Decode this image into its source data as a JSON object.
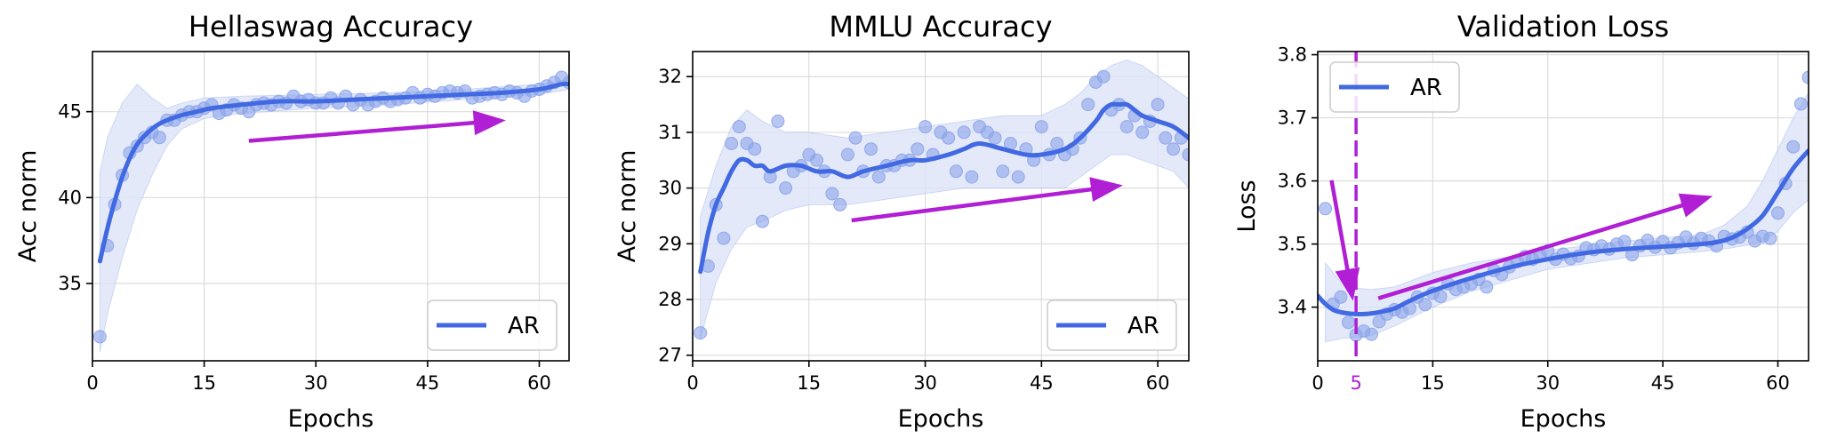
{
  "colors": {
    "line": "#4169e1",
    "marker": "#8aa4ea",
    "band": "#dde4f7",
    "arrow": "#b01fd4",
    "grid": "#dcdcdc"
  },
  "chart_data": [
    {
      "type": "line",
      "title": "Hellaswag Accuracy",
      "xlabel": "Epochs",
      "ylabel": "Acc norm",
      "xlim": [
        0,
        64
      ],
      "ylim": [
        30.5,
        48.5
      ],
      "xticks": [
        0,
        15,
        30,
        45,
        60
      ],
      "yticks": [
        35,
        40,
        45
      ],
      "grid": true,
      "legend_position": "lower-right",
      "series": [
        {
          "name": "AR"
        }
      ],
      "points": {
        "x": [
          1,
          2,
          3,
          4,
          5,
          6,
          7,
          8,
          9,
          10,
          11,
          12,
          13,
          14,
          15,
          16,
          17,
          18,
          19,
          20,
          21,
          22,
          23,
          24,
          25,
          26,
          27,
          28,
          29,
          30,
          31,
          32,
          33,
          34,
          35,
          36,
          37,
          38,
          39,
          40,
          41,
          42,
          43,
          44,
          45,
          46,
          47,
          48,
          49,
          50,
          51,
          52,
          53,
          54,
          55,
          56,
          57,
          58,
          59,
          60,
          61,
          62,
          63,
          64
        ],
        "y": [
          31.9,
          37.2,
          39.6,
          41.3,
          42.6,
          43.0,
          43.5,
          43.8,
          43.5,
          44.5,
          44.5,
          44.8,
          45.0,
          45.0,
          45.2,
          45.4,
          44.9,
          45.1,
          45.4,
          45.2,
          45.0,
          45.4,
          45.5,
          45.4,
          45.6,
          45.5,
          45.9,
          45.6,
          45.7,
          45.5,
          45.5,
          45.8,
          45.5,
          45.9,
          45.4,
          45.7,
          45.4,
          45.6,
          45.8,
          45.6,
          45.7,
          45.8,
          46.1,
          45.8,
          46.0,
          45.9,
          46.1,
          46.2,
          46.1,
          46.2,
          45.8,
          45.9,
          46.0,
          46.1,
          46.0,
          46.2,
          46.1,
          45.9,
          46.2,
          46.3,
          46.5,
          46.7,
          47.0,
          46.7
        ]
      },
      "trend": {
        "x": [
          1,
          2,
          3,
          4,
          5,
          6,
          7,
          8,
          9,
          10,
          12,
          14,
          16,
          20,
          25,
          30,
          35,
          40,
          45,
          50,
          55,
          60,
          63,
          64
        ],
        "y": [
          36.3,
          38.2,
          39.8,
          41.2,
          42.3,
          43.1,
          43.6,
          44.0,
          44.3,
          44.5,
          44.8,
          45.0,
          45.2,
          45.4,
          45.6,
          45.6,
          45.7,
          45.8,
          45.9,
          46.0,
          46.1,
          46.3,
          46.6,
          46.6
        ]
      },
      "band": {
        "x": [
          1,
          2,
          4,
          6,
          8,
          10,
          12,
          15,
          20,
          30,
          40,
          50,
          60,
          64
        ],
        "low": [
          31.0,
          33.2,
          36.5,
          39.3,
          41.3,
          43.0,
          44.0,
          44.6,
          44.9,
          45.2,
          45.4,
          45.7,
          46.0,
          46.3
        ],
        "high": [
          41.5,
          43.5,
          45.5,
          46.6,
          45.8,
          45.2,
          45.5,
          45.8,
          45.9,
          46.0,
          46.1,
          46.3,
          46.6,
          46.9
        ]
      },
      "arrows": [
        {
          "from": [
            21,
            43.3
          ],
          "to": [
            55.5,
            44.5
          ]
        }
      ]
    },
    {
      "type": "line",
      "title": "MMLU Accuracy",
      "xlabel": "Epochs",
      "ylabel": "Acc norm",
      "xlim": [
        0,
        64
      ],
      "ylim": [
        26.9,
        32.45
      ],
      "xticks": [
        0,
        15,
        30,
        45,
        60
      ],
      "yticks": [
        27,
        28,
        29,
        30,
        31,
        32
      ],
      "grid": true,
      "legend_position": "lower-right",
      "series": [
        {
          "name": "AR"
        }
      ],
      "points": {
        "x": [
          1,
          2,
          3,
          4,
          5,
          6,
          7,
          8,
          9,
          10,
          11,
          12,
          13,
          14,
          15,
          16,
          17,
          18,
          19,
          20,
          21,
          22,
          23,
          24,
          25,
          26,
          27,
          28,
          29,
          30,
          31,
          32,
          33,
          34,
          35,
          36,
          37,
          38,
          39,
          40,
          41,
          42,
          43,
          44,
          45,
          46,
          47,
          48,
          49,
          50,
          51,
          52,
          53,
          54,
          55,
          56,
          57,
          58,
          59,
          60,
          61,
          62,
          63,
          64
        ],
        "y": [
          27.4,
          28.6,
          29.7,
          29.1,
          30.8,
          31.1,
          30.8,
          30.7,
          29.4,
          30.2,
          31.2,
          30.0,
          30.3,
          30.4,
          30.6,
          30.5,
          30.3,
          29.9,
          29.7,
          30.6,
          30.9,
          30.3,
          30.7,
          30.2,
          30.4,
          30.4,
          30.5,
          30.5,
          30.7,
          31.1,
          30.6,
          31.0,
          30.9,
          30.3,
          31.0,
          30.2,
          31.1,
          31.0,
          30.9,
          30.3,
          30.8,
          30.2,
          30.7,
          30.5,
          31.1,
          30.6,
          30.8,
          30.6,
          30.7,
          30.9,
          31.5,
          31.9,
          32.0,
          31.4,
          31.5,
          31.1,
          31.3,
          31.0,
          31.2,
          31.5,
          30.9,
          30.7,
          30.9,
          30.6
        ]
      },
      "trend": {
        "x": [
          1,
          2,
          3,
          4,
          5,
          6,
          7,
          8,
          9,
          10,
          12,
          14,
          16,
          18,
          20,
          22,
          25,
          28,
          30,
          33,
          35,
          37,
          40,
          43,
          45,
          48,
          50,
          52,
          53,
          54,
          55,
          56,
          57,
          58,
          60,
          62,
          64
        ],
        "y": [
          28.5,
          29.2,
          29.7,
          30.0,
          30.3,
          30.5,
          30.5,
          30.4,
          30.4,
          30.3,
          30.4,
          30.4,
          30.3,
          30.3,
          30.2,
          30.3,
          30.4,
          30.5,
          30.5,
          30.6,
          30.7,
          30.8,
          30.7,
          30.6,
          30.6,
          30.7,
          30.9,
          31.2,
          31.4,
          31.5,
          31.5,
          31.5,
          31.4,
          31.3,
          31.2,
          31.1,
          30.9
        ]
      },
      "band": {
        "x": [
          1,
          3,
          5,
          7,
          9,
          12,
          15,
          20,
          25,
          30,
          35,
          40,
          45,
          48,
          50,
          52,
          54,
          56,
          58,
          60,
          62,
          64
        ],
        "low": [
          27.3,
          28.3,
          28.9,
          29.3,
          29.4,
          29.6,
          29.7,
          29.7,
          29.8,
          29.9,
          30.0,
          30.0,
          30.0,
          30.0,
          30.2,
          30.4,
          30.6,
          30.6,
          30.5,
          30.4,
          30.3,
          30.0
        ],
        "high": [
          29.5,
          30.4,
          31.1,
          31.4,
          31.2,
          31.0,
          31.0,
          30.9,
          31.0,
          31.1,
          31.2,
          31.3,
          31.3,
          31.5,
          31.7,
          32.0,
          32.2,
          32.3,
          32.2,
          32.0,
          31.8,
          31.6
        ]
      },
      "arrows": [
        {
          "from": [
            20.5,
            29.42
          ],
          "to": [
            55.5,
            30.05
          ]
        }
      ]
    },
    {
      "type": "line",
      "title": "Validation Loss",
      "xlabel": "Epochs",
      "ylabel": "Loss",
      "xlim": [
        0,
        64
      ],
      "ylim": [
        3.315,
        3.805
      ],
      "xticks": [
        0,
        15,
        30,
        45,
        60
      ],
      "yticks": [
        3.4,
        3.5,
        3.6,
        3.7,
        3.8
      ],
      "grid": true,
      "legend_position": "upper-left",
      "series": [
        {
          "name": "AR"
        }
      ],
      "vline": {
        "x": 5,
        "label": "5"
      },
      "points": {
        "x": [
          1,
          2,
          3,
          4,
          5,
          6,
          7,
          8,
          9,
          10,
          11,
          12,
          13,
          14,
          15,
          16,
          17,
          18,
          19,
          20,
          21,
          22,
          23,
          24,
          25,
          26,
          27,
          28,
          29,
          30,
          31,
          32,
          33,
          34,
          35,
          36,
          37,
          38,
          39,
          40,
          41,
          42,
          43,
          44,
          45,
          46,
          47,
          48,
          49,
          50,
          51,
          52,
          53,
          54,
          55,
          56,
          57,
          58,
          59,
          60,
          61,
          62,
          63,
          64
        ],
        "y": [
          3.556,
          3.405,
          3.416,
          3.376,
          3.356,
          3.362,
          3.357,
          3.377,
          3.389,
          3.396,
          3.392,
          3.398,
          3.416,
          3.404,
          3.422,
          3.417,
          3.437,
          3.428,
          3.432,
          3.437,
          3.444,
          3.432,
          3.458,
          3.452,
          3.464,
          3.472,
          3.48,
          3.476,
          3.482,
          3.489,
          3.476,
          3.484,
          3.477,
          3.481,
          3.494,
          3.491,
          3.497,
          3.492,
          3.5,
          3.504,
          3.483,
          3.497,
          3.506,
          3.495,
          3.504,
          3.494,
          3.502,
          3.511,
          3.501,
          3.509,
          3.505,
          3.497,
          3.512,
          3.508,
          3.511,
          3.519,
          3.505,
          3.512,
          3.509,
          3.549,
          3.596,
          3.654,
          3.722,
          3.764
        ]
      },
      "trend": {
        "x": [
          0,
          1,
          2,
          3,
          4,
          5,
          6,
          7,
          8,
          10,
          12,
          15,
          20,
          25,
          30,
          35,
          40,
          45,
          50,
          52,
          54,
          56,
          58,
          60,
          62,
          64
        ],
        "y": [
          3.418,
          3.405,
          3.396,
          3.392,
          3.39,
          3.389,
          3.389,
          3.39,
          3.392,
          3.398,
          3.41,
          3.426,
          3.446,
          3.463,
          3.476,
          3.486,
          3.492,
          3.496,
          3.5,
          3.503,
          3.51,
          3.524,
          3.545,
          3.582,
          3.62,
          3.648
        ]
      },
      "band": {
        "x": [
          1,
          3,
          5,
          7,
          10,
          15,
          20,
          30,
          40,
          50,
          53,
          56,
          58,
          60,
          62,
          64
        ],
        "low": [
          3.345,
          3.35,
          3.352,
          3.355,
          3.37,
          3.4,
          3.425,
          3.46,
          3.478,
          3.488,
          3.492,
          3.498,
          3.505,
          3.52,
          3.55,
          3.57
        ],
        "high": [
          3.47,
          3.44,
          3.43,
          3.428,
          3.432,
          3.455,
          3.47,
          3.49,
          3.505,
          3.515,
          3.53,
          3.56,
          3.6,
          3.65,
          3.7,
          3.74
        ]
      },
      "arrows": [
        {
          "from": [
            1.8,
            3.601
          ],
          "to": [
            4.6,
            3.41
          ]
        },
        {
          "from": [
            7.9,
            3.414
          ],
          "to": [
            51.5,
            3.576
          ]
        }
      ]
    }
  ]
}
